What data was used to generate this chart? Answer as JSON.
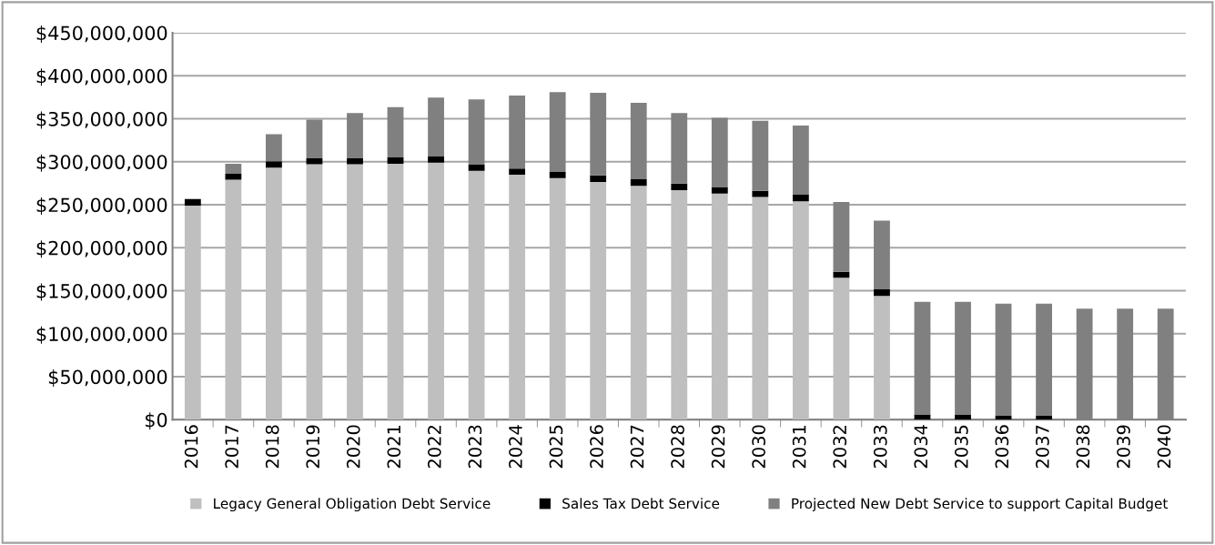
{
  "chart_data": {
    "type": "bar",
    "stacked": true,
    "categories": [
      "2016",
      "2017",
      "2018",
      "2019",
      "2020",
      "2021",
      "2022",
      "2023",
      "2024",
      "2025",
      "2026",
      "2027",
      "2028",
      "2029",
      "2030",
      "2031",
      "2032",
      "2033",
      "2034",
      "2035",
      "2036",
      "2037",
      "2038",
      "2039",
      "2040"
    ],
    "series": [
      {
        "name": "Legacy General Obligation Debt Service",
        "color": "#bfbfbf",
        "values": [
          249000000,
          279000000,
          293000000,
          297000000,
          297000000,
          297500000,
          299000000,
          289500000,
          285000000,
          281000000,
          276500000,
          272000000,
          267000000,
          263000000,
          259000000,
          254000000,
          165000000,
          144000000,
          0,
          0,
          0,
          0,
          0,
          0,
          0
        ]
      },
      {
        "name": "Sales Tax Debt Service",
        "color": "#000000",
        "values": [
          7500000,
          7000000,
          7500000,
          7000000,
          7000000,
          7500000,
          7500000,
          7000000,
          7000000,
          7000000,
          7500000,
          7500000,
          7500000,
          7500000,
          7000000,
          7500000,
          7000000,
          7500000,
          6000000,
          6000000,
          4500000,
          4500000,
          0,
          0,
          0
        ]
      },
      {
        "name": "Projected New Debt Service to support Capital Budget",
        "color": "#808080",
        "values": [
          0,
          11500000,
          31500000,
          45000000,
          52500000,
          58500000,
          68000000,
          76000000,
          85000000,
          93000000,
          96000000,
          89000000,
          82000000,
          80500000,
          81500000,
          80500000,
          81000000,
          80000000,
          131000000,
          131000000,
          130500000,
          130500000,
          129000000,
          129000000,
          129000000
        ]
      }
    ],
    "ylim": [
      0,
      450000000
    ],
    "yticks": [
      {
        "value": 0,
        "label": "$0"
      },
      {
        "value": 50000000,
        "label": "$50,000,000"
      },
      {
        "value": 100000000,
        "label": "$100,000,000"
      },
      {
        "value": 150000000,
        "label": "$150,000,000"
      },
      {
        "value": 200000000,
        "label": "$200,000,000"
      },
      {
        "value": 250000000,
        "label": "$250,000,000"
      },
      {
        "value": 300000000,
        "label": "$300,000,000"
      },
      {
        "value": 350000000,
        "label": "$350,000,000"
      },
      {
        "value": 400000000,
        "label": "$400,000,000"
      },
      {
        "value": 450000000,
        "label": "$450,000,000"
      }
    ],
    "grid": "y",
    "legend": "bottom"
  }
}
